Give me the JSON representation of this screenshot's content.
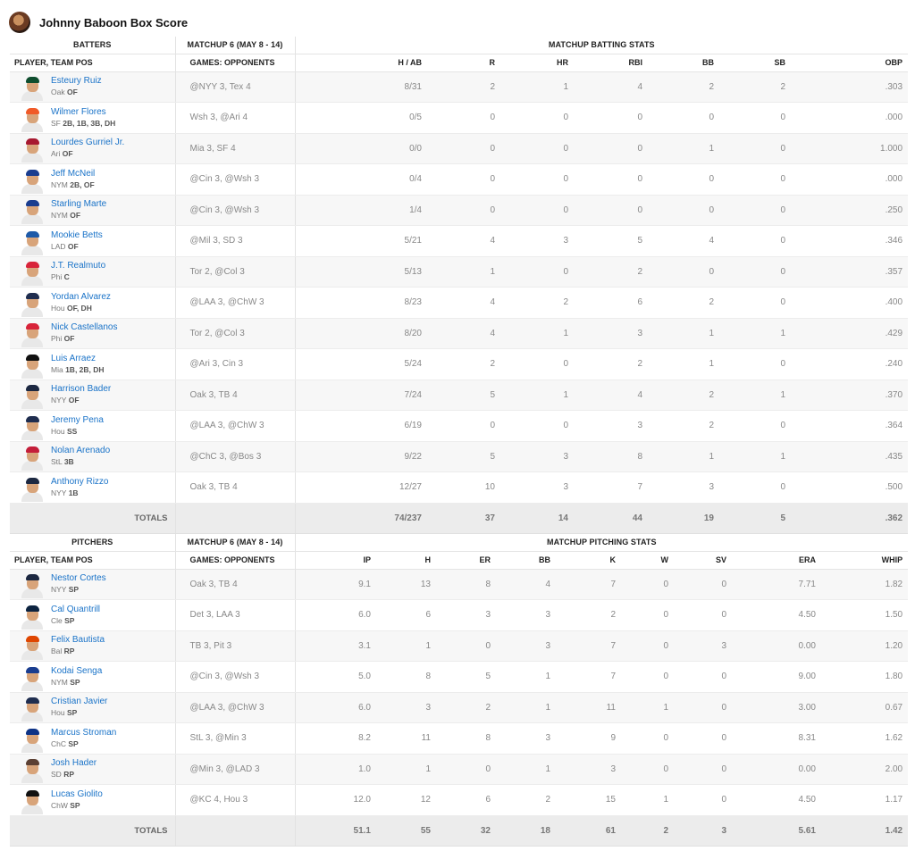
{
  "title": "Johnny Baboon Box Score",
  "batting": {
    "group_headers": [
      "BATTERS",
      "MATCHUP 6 (MAY 8 - 14)",
      "MATCHUP BATTING STATS"
    ],
    "columns": [
      "PLAYER, TEAM POS",
      "GAMES: OPPONENTS",
      "H / AB",
      "R",
      "HR",
      "RBI",
      "BB",
      "SB",
      "OBP"
    ],
    "rows": [
      {
        "name": "Esteury Ruiz",
        "team": "Oak",
        "pos": "OF",
        "games": "@NYY 3, Tex 4",
        "stats": [
          "8/31",
          "2",
          "1",
          "4",
          "2",
          "2",
          ".303"
        ],
        "cap": "#0e4d2e"
      },
      {
        "name": "Wilmer Flores",
        "team": "SF",
        "pos": "2B, 1B, 3B, DH",
        "games": "Wsh 3, @Ari 4",
        "stats": [
          "0/5",
          "0",
          "0",
          "0",
          "0",
          "0",
          ".000"
        ],
        "cap": "#f05a28"
      },
      {
        "name": "Lourdes Gurriel Jr.",
        "team": "Ari",
        "pos": "OF",
        "games": "Mia 3, SF 4",
        "stats": [
          "0/0",
          "0",
          "0",
          "0",
          "1",
          "0",
          "1.000"
        ],
        "cap": "#a71930"
      },
      {
        "name": "Jeff McNeil",
        "team": "NYM",
        "pos": "2B, OF",
        "games": "@Cin 3, @Wsh 3",
        "stats": [
          "0/4",
          "0",
          "0",
          "0",
          "0",
          "0",
          ".000"
        ],
        "cap": "#1a3d8f"
      },
      {
        "name": "Starling Marte",
        "team": "NYM",
        "pos": "OF",
        "games": "@Cin 3, @Wsh 3",
        "stats": [
          "1/4",
          "0",
          "0",
          "0",
          "0",
          "0",
          ".250"
        ],
        "cap": "#1a3d8f"
      },
      {
        "name": "Mookie Betts",
        "team": "LAD",
        "pos": "OF",
        "games": "@Mil 3, SD 3",
        "stats": [
          "5/21",
          "4",
          "3",
          "5",
          "4",
          "0",
          ".346"
        ],
        "cap": "#1e5aa8"
      },
      {
        "name": "J.T. Realmuto",
        "team": "Phi",
        "pos": "C",
        "games": "Tor 2, @Col 3",
        "stats": [
          "5/13",
          "1",
          "0",
          "2",
          "0",
          "0",
          ".357"
        ],
        "cap": "#d8243a"
      },
      {
        "name": "Yordan Alvarez",
        "team": "Hou",
        "pos": "OF, DH",
        "games": "@LAA 3, @ChW 3",
        "stats": [
          "8/23",
          "4",
          "2",
          "6",
          "2",
          "0",
          ".400"
        ],
        "cap": "#1f2d4f"
      },
      {
        "name": "Nick Castellanos",
        "team": "Phi",
        "pos": "OF",
        "games": "Tor 2, @Col 3",
        "stats": [
          "8/20",
          "4",
          "1",
          "3",
          "1",
          "1",
          ".429"
        ],
        "cap": "#d8243a"
      },
      {
        "name": "Luis Arraez",
        "team": "Mia",
        "pos": "1B, 2B, DH",
        "games": "@Ari 3, Cin 3",
        "stats": [
          "5/24",
          "2",
          "0",
          "2",
          "1",
          "0",
          ".240"
        ],
        "cap": "#111111"
      },
      {
        "name": "Harrison Bader",
        "team": "NYY",
        "pos": "OF",
        "games": "Oak 3, TB 4",
        "stats": [
          "7/24",
          "5",
          "1",
          "4",
          "2",
          "1",
          ".370"
        ],
        "cap": "#1c2841"
      },
      {
        "name": "Jeremy Pena",
        "team": "Hou",
        "pos": "SS",
        "games": "@LAA 3, @ChW 3",
        "stats": [
          "6/19",
          "0",
          "0",
          "3",
          "2",
          "0",
          ".364"
        ],
        "cap": "#1f2d4f"
      },
      {
        "name": "Nolan Arenado",
        "team": "StL",
        "pos": "3B",
        "games": "@ChC 3, @Bos 3",
        "stats": [
          "9/22",
          "5",
          "3",
          "8",
          "1",
          "1",
          ".435"
        ],
        "cap": "#c41e3a"
      },
      {
        "name": "Anthony Rizzo",
        "team": "NYY",
        "pos": "1B",
        "games": "Oak 3, TB 4",
        "stats": [
          "12/27",
          "10",
          "3",
          "7",
          "3",
          "0",
          ".500"
        ],
        "cap": "#1c2841"
      }
    ],
    "totals_label": "TOTALS",
    "totals": [
      "74/237",
      "37",
      "14",
      "44",
      "19",
      "5",
      ".362"
    ]
  },
  "pitching": {
    "group_headers": [
      "PITCHERS",
      "MATCHUP 6 (MAY 8 - 14)",
      "MATCHUP PITCHING STATS"
    ],
    "columns": [
      "PLAYER, TEAM POS",
      "GAMES: OPPONENTS",
      "IP",
      "H",
      "ER",
      "BB",
      "K",
      "W",
      "SV",
      "ERA",
      "WHIP"
    ],
    "rows": [
      {
        "name": "Nestor Cortes",
        "team": "NYY",
        "pos": "SP",
        "games": "Oak 3, TB 4",
        "stats": [
          "9.1",
          "13",
          "8",
          "4",
          "7",
          "0",
          "0",
          "7.71",
          "1.82"
        ],
        "cap": "#1c2841"
      },
      {
        "name": "Cal Quantrill",
        "team": "Cle",
        "pos": "SP",
        "games": "Det 3, LAA 3",
        "stats": [
          "6.0",
          "6",
          "3",
          "3",
          "2",
          "0",
          "0",
          "4.50",
          "1.50"
        ],
        "cap": "#0c2340"
      },
      {
        "name": "Felix Bautista",
        "team": "Bal",
        "pos": "RP",
        "games": "TB 3, Pit 3",
        "stats": [
          "3.1",
          "1",
          "0",
          "3",
          "7",
          "0",
          "3",
          "0.00",
          "1.20"
        ],
        "cap": "#df4601"
      },
      {
        "name": "Kodai Senga",
        "team": "NYM",
        "pos": "SP",
        "games": "@Cin 3, @Wsh 3",
        "stats": [
          "5.0",
          "8",
          "5",
          "1",
          "7",
          "0",
          "0",
          "9.00",
          "1.80"
        ],
        "cap": "#1a3d8f"
      },
      {
        "name": "Cristian Javier",
        "team": "Hou",
        "pos": "SP",
        "games": "@LAA 3, @ChW 3",
        "stats": [
          "6.0",
          "3",
          "2",
          "1",
          "11",
          "1",
          "0",
          "3.00",
          "0.67"
        ],
        "cap": "#1f2d4f"
      },
      {
        "name": "Marcus Stroman",
        "team": "ChC",
        "pos": "SP",
        "games": "StL 3, @Min 3",
        "stats": [
          "8.2",
          "11",
          "8",
          "3",
          "9",
          "0",
          "0",
          "8.31",
          "1.62"
        ],
        "cap": "#0e3386"
      },
      {
        "name": "Josh Hader",
        "team": "SD",
        "pos": "RP",
        "games": "@Min 3, @LAD 3",
        "stats": [
          "1.0",
          "1",
          "0",
          "1",
          "3",
          "0",
          "0",
          "0.00",
          "2.00"
        ],
        "cap": "#5c4033"
      },
      {
        "name": "Lucas Giolito",
        "team": "ChW",
        "pos": "SP",
        "games": "@KC 4, Hou 3",
        "stats": [
          "12.0",
          "12",
          "6",
          "2",
          "15",
          "1",
          "0",
          "4.50",
          "1.17"
        ],
        "cap": "#111111"
      }
    ],
    "totals_label": "TOTALS",
    "totals": [
      "51.1",
      "55",
      "32",
      "18",
      "61",
      "2",
      "3",
      "5.61",
      "1.42"
    ]
  }
}
